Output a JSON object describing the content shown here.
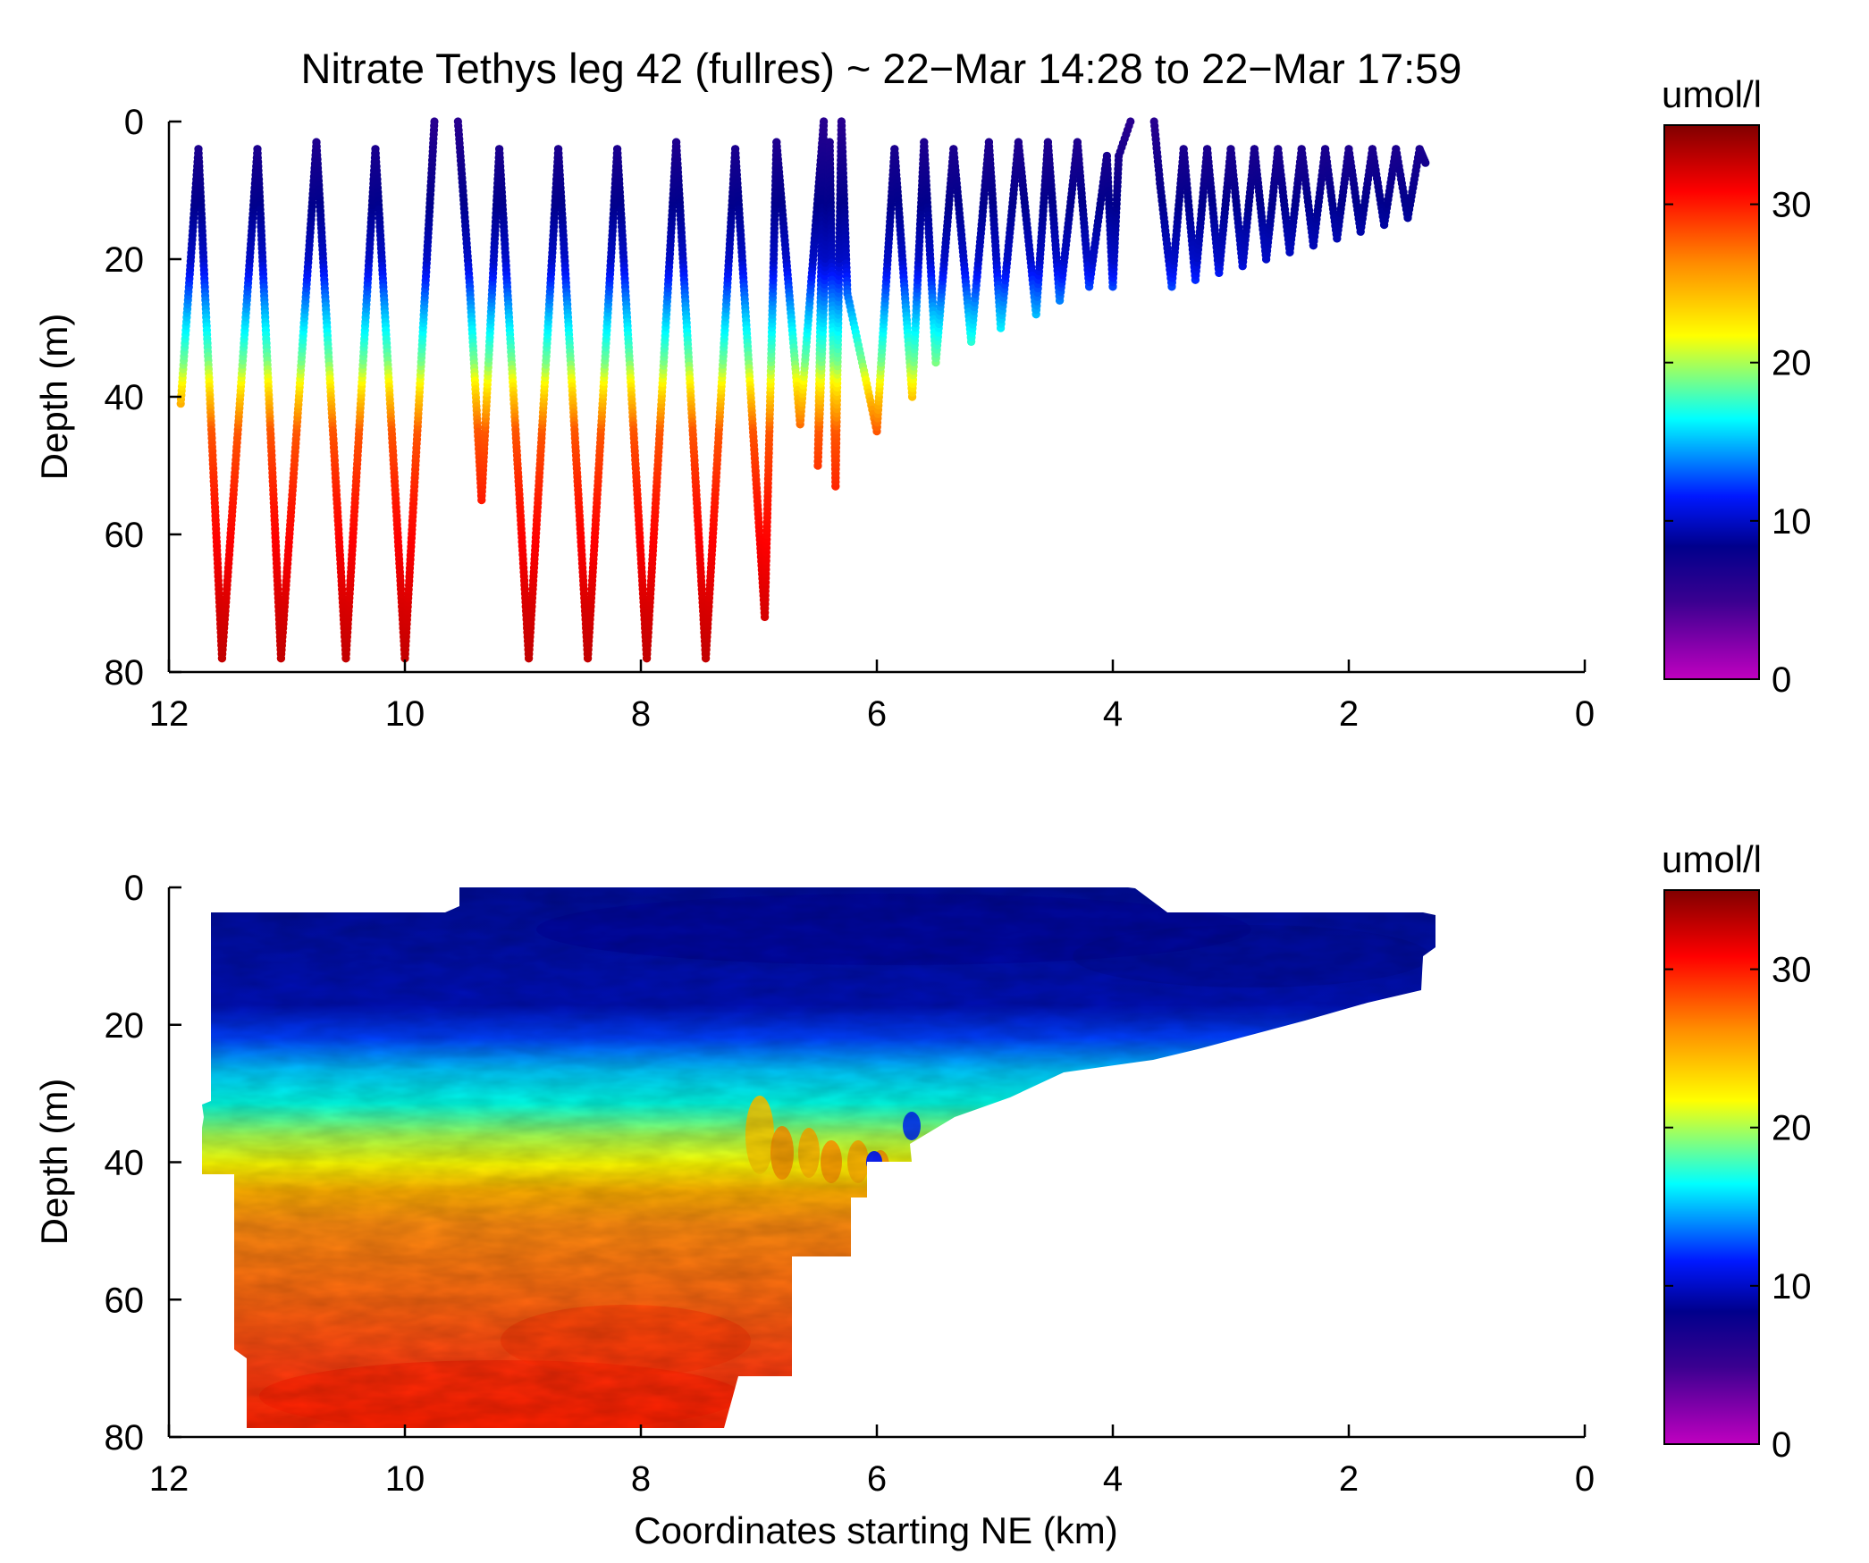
{
  "figure": {
    "title": "Nitrate Tethys leg 42 (fullres) ~ 22−Mar 14:28 to 22−Mar 17:59"
  },
  "chart_data": [
    {
      "type": "scatter",
      "panel": "top",
      "xlabel": "",
      "ylabel": "Depth (m)",
      "xlim": [
        12,
        0
      ],
      "ylim": [
        0,
        80
      ],
      "x_reversed": true,
      "y_reversed": true,
      "xticks": [
        "12",
        "10",
        "8",
        "6",
        "4",
        "2",
        "0"
      ],
      "yticks": [
        "0",
        "20",
        "40",
        "60",
        "80"
      ],
      "grid": false,
      "colorbar": {
        "label": "umol/l",
        "range": [
          0,
          35
        ],
        "ticks": [
          "0",
          "10",
          "20",
          "30"
        ],
        "colormap": "jet-like (magenta-blue-cyan-yellow-red-darkred)"
      },
      "segments": [
        {
          "x": [
            11.9,
            11.75,
            11.55,
            11.25,
            11.05,
            10.75,
            10.5,
            10.25,
            10.0,
            9.75
          ],
          "depth": [
            41,
            4,
            78,
            4,
            78,
            3,
            78,
            4,
            78,
            0
          ]
        },
        {
          "x": [
            9.55,
            9.45,
            9.35,
            9.2,
            8.95,
            8.7,
            8.45,
            8.2,
            7.95,
            7.7,
            7.45,
            7.2,
            6.95,
            6.85,
            6.65,
            6.45,
            6.5,
            6.4,
            6.35,
            6.3,
            6.25,
            6.0,
            5.85,
            5.7,
            5.6,
            5.5,
            5.35,
            5.2,
            5.05,
            4.95,
            4.8,
            4.65,
            4.55,
            4.45,
            4.3,
            4.2,
            4.05,
            4.0,
            3.95,
            3.85
          ],
          "depth": [
            0,
            24,
            55,
            4,
            78,
            4,
            78,
            4,
            78,
            3,
            78,
            4,
            72,
            3,
            44,
            0,
            50,
            3,
            53,
            0,
            25,
            45,
            4,
            40,
            3,
            35,
            4,
            32,
            3,
            30,
            3,
            28,
            3,
            26,
            3,
            24,
            5,
            24,
            5,
            0
          ]
        },
        {
          "x": [
            3.65,
            3.6,
            3.5,
            3.4,
            3.3,
            3.2,
            3.1,
            3.0,
            2.9,
            2.8,
            2.7,
            2.6,
            2.5,
            2.4,
            2.3,
            2.2,
            2.1,
            2.0,
            1.9,
            1.8,
            1.7,
            1.6,
            1.5,
            1.4,
            1.35
          ],
          "depth": [
            0,
            9,
            24,
            4,
            23,
            4,
            22,
            4,
            21,
            4,
            20,
            4,
            19,
            4,
            18,
            4,
            17,
            4,
            16,
            4,
            15,
            4,
            14,
            4,
            6
          ]
        }
      ],
      "depth_profile": [
        [
          0,
          6
        ],
        [
          20,
          10
        ],
        [
          28,
          15
        ],
        [
          35,
          19
        ],
        [
          40,
          24
        ],
        [
          45,
          28
        ],
        [
          55,
          30
        ],
        [
          70,
          32
        ],
        [
          80,
          33
        ]
      ]
    },
    {
      "type": "heatmap",
      "panel": "bottom",
      "xlabel": "Coordinates starting NE (km)",
      "ylabel": "Depth (m)",
      "xlim": [
        12,
        0
      ],
      "ylim": [
        0,
        80
      ],
      "x_reversed": true,
      "y_reversed": true,
      "xticks": [
        "12",
        "10",
        "8",
        "6",
        "4",
        "2",
        "0"
      ],
      "yticks": [
        "0",
        "20",
        "40",
        "60",
        "80"
      ],
      "grid": false,
      "colorbar": {
        "label": "umol/l",
        "range": [
          0,
          35
        ],
        "ticks": [
          "0",
          "10",
          "20",
          "30"
        ],
        "colormap": "jet-like (magenta-blue-cyan-yellow-red-darkred)"
      },
      "layers": [
        {
          "range_umol_l": "5-9",
          "description": "surface layer"
        },
        {
          "range_umol_l": "15-20",
          "approx_depth_m": "25-38"
        },
        {
          "range_umol_l": "24-27",
          "approx_depth_m": "38-43"
        },
        {
          "range_umol_l": "28-32",
          "approx_depth_m": "43-80"
        }
      ]
    }
  ],
  "colors": {
    "colormap_stops": [
      "#c000c0",
      "#3a0090",
      "#00008c",
      "#0018ff",
      "#00ffff",
      "#ffff00",
      "#ff8c00",
      "#ff0000",
      "#800000"
    ]
  }
}
